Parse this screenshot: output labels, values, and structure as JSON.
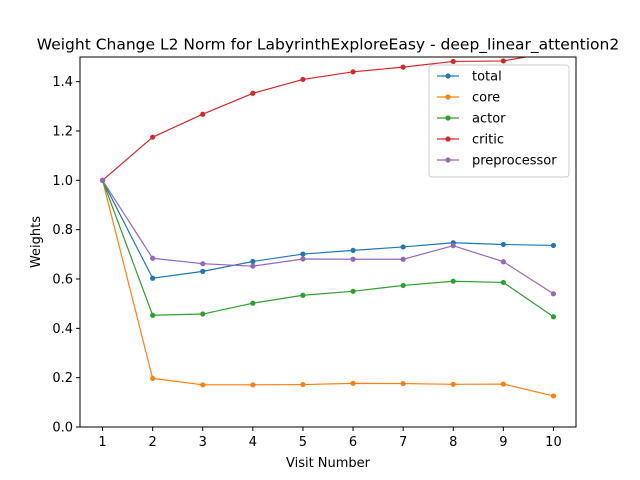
{
  "chart_data": {
    "type": "line",
    "title": "Weight Change L2 Norm for LabyrinthExploreEasy - deep_linear_attention2",
    "xlabel": "Visit Number",
    "ylabel": "Weights",
    "x": [
      1,
      2,
      3,
      4,
      5,
      6,
      7,
      8,
      9,
      10
    ],
    "xlim": [
      0.55,
      10.45
    ],
    "ylim": [
      0.0,
      1.5
    ],
    "yticks": [
      0.0,
      0.2,
      0.4,
      0.6,
      0.8,
      1.0,
      1.2,
      1.4
    ],
    "grid": false,
    "legend_position": "upper-right",
    "series": [
      {
        "name": "total",
        "color": "#1f77b4",
        "values": [
          1.0,
          0.603,
          0.631,
          0.671,
          0.701,
          0.716,
          0.73,
          0.747,
          0.74,
          0.736
        ]
      },
      {
        "name": "core",
        "color": "#ff7f0e",
        "values": [
          1.0,
          0.197,
          0.171,
          0.171,
          0.172,
          0.177,
          0.176,
          0.173,
          0.174,
          0.126
        ]
      },
      {
        "name": "actor",
        "color": "#2ca02c",
        "values": [
          1.0,
          0.453,
          0.458,
          0.502,
          0.534,
          0.55,
          0.574,
          0.591,
          0.586,
          0.447
        ]
      },
      {
        "name": "critic",
        "color": "#d62728",
        "values": [
          1.0,
          1.175,
          1.268,
          1.353,
          1.409,
          1.44,
          1.459,
          1.482,
          1.484,
          1.52
        ]
      },
      {
        "name": "preprocessor",
        "color": "#9467bd",
        "values": [
          1.0,
          0.684,
          0.662,
          0.652,
          0.681,
          0.68,
          0.68,
          0.735,
          0.67,
          0.54
        ]
      }
    ]
  }
}
